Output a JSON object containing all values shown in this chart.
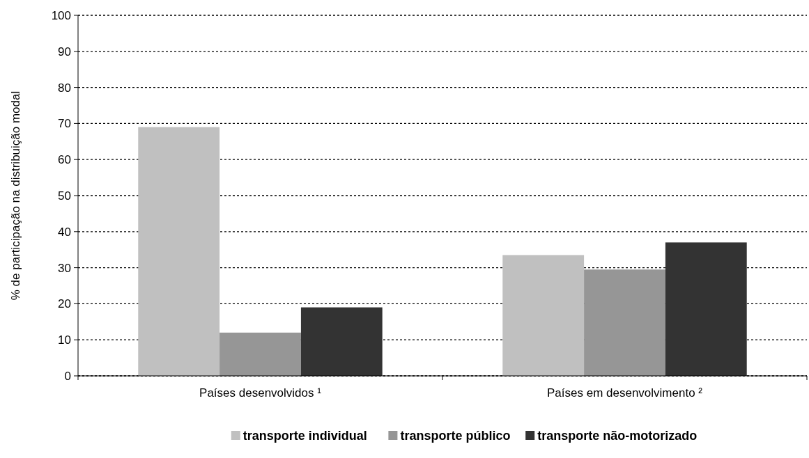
{
  "chart_data": {
    "type": "bar",
    "ylabel": "% de participação na distribuição modal",
    "categories": [
      "Países desenvolvidos ¹",
      "Países em desenvolvimento ²"
    ],
    "series": [
      {
        "name": "transporte individual",
        "color": "#c0c0c0",
        "values": [
          69,
          33.5
        ]
      },
      {
        "name": "transporte público",
        "color": "#969696",
        "values": [
          12,
          29.5
        ]
      },
      {
        "name": "transporte não-motorizado",
        "color": "#333333",
        "values": [
          19,
          37
        ]
      }
    ],
    "ylim": [
      0,
      100
    ],
    "yticks": [
      0,
      10,
      20,
      30,
      40,
      50,
      60,
      70,
      80,
      90,
      100
    ],
    "grid": "y",
    "legend": "bottom"
  }
}
